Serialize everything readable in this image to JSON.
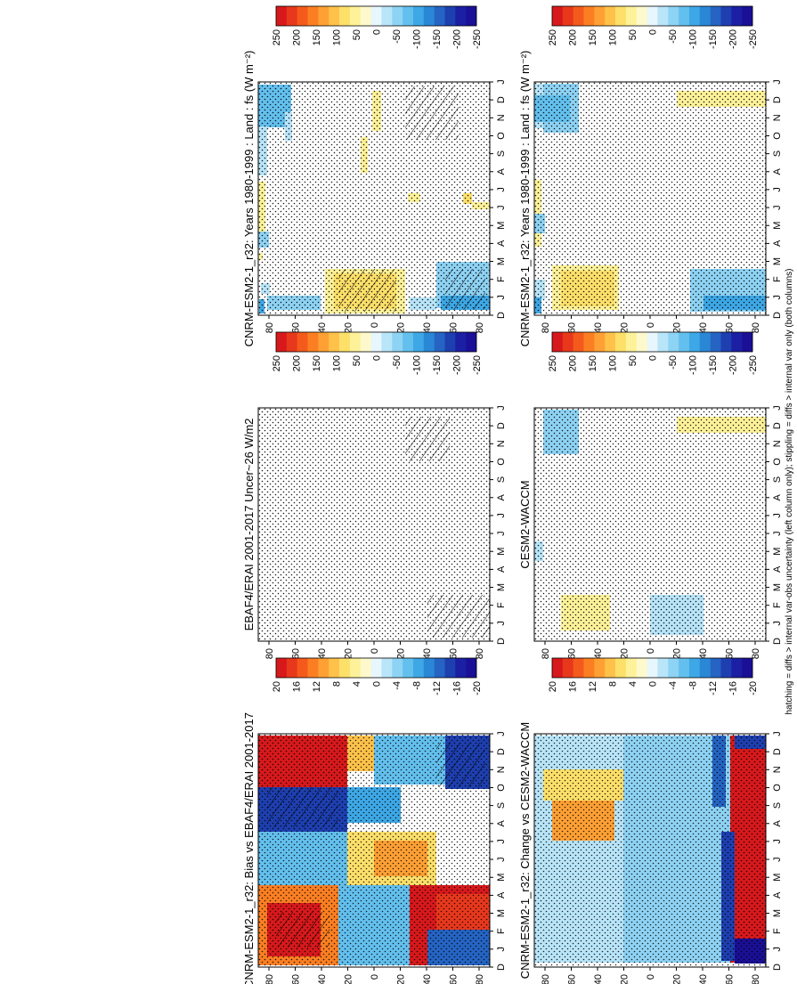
{
  "footnote": "hatching = diffs > internal var-obs uncertainty (left column only); stippling = diffs > internal var only (both columns)",
  "palette": {
    "warm": [
      "#d7191c",
      "#e8381c",
      "#f45a1c",
      "#fb7f22",
      "#fea034",
      "#fec24a",
      "#fde06a",
      "#fdf299",
      "#fef9cc"
    ],
    "cool": [
      "#e8f6fd",
      "#b9e5f9",
      "#8ed3f4",
      "#63c0ee",
      "#3ea8e6",
      "#2a87d6",
      "#2564c3",
      "#1e3fb0",
      "#1b1fa3",
      "#1a0f96"
    ]
  },
  "chart_data": [
    {
      "id": "panel-model-left",
      "type": "heatmap",
      "title": "CNRM-ESM2-1_r32: Years 1980-1999 : Land : fs (W m^-2)",
      "x_ticks": [
        "D",
        "J",
        "F",
        "M",
        "A",
        "M",
        "J",
        "J",
        "A",
        "S",
        "O",
        "N",
        "D",
        "J"
      ],
      "y_ticks": [
        "80",
        "60",
        "40",
        "20",
        "0",
        "20",
        "40",
        "60",
        "80"
      ],
      "colorbar_ticks": [
        "250",
        "200",
        "150",
        "100",
        "50",
        "0",
        "-50",
        "-100",
        "-150",
        "-200",
        "-250"
      ],
      "range": [
        -250,
        250
      ],
      "stippling": true,
      "hatching": true
    },
    {
      "id": "panel-model-right",
      "type": "heatmap",
      "title": "CNRM-ESM2-1_r32: Years 1980-1999 : Land : fs (W m^-2)",
      "x_ticks": [
        "D",
        "J",
        "F",
        "M",
        "A",
        "M",
        "J",
        "J",
        "A",
        "S",
        "O",
        "N",
        "D",
        "J"
      ],
      "y_ticks": [
        "80",
        "60",
        "40",
        "20",
        "0",
        "20",
        "40",
        "60",
        "80"
      ],
      "colorbar_ticks": [
        "250",
        "200",
        "150",
        "100",
        "50",
        "0",
        "-50",
        "-100",
        "-150",
        "-200",
        "-250"
      ],
      "range": [
        -250,
        250
      ],
      "stippling": true,
      "hatching": false
    },
    {
      "id": "panel-obs",
      "type": "heatmap",
      "title": "EBAF4/ERAI 2001-2017 Uncer~26 W/m2",
      "x_ticks": [
        "D",
        "J",
        "F",
        "M",
        "A",
        "M",
        "J",
        "J",
        "A",
        "S",
        "O",
        "N",
        "D",
        "J"
      ],
      "y_ticks": [
        "80",
        "60",
        "40",
        "20",
        "0",
        "20",
        "40",
        "60",
        "80"
      ],
      "colorbar_ticks": [
        "250",
        "200",
        "150",
        "100",
        "50",
        "0",
        "-50",
        "-100",
        "-150",
        "-200",
        "-250"
      ],
      "range": [
        -250,
        250
      ],
      "stippling": true,
      "hatching": true
    },
    {
      "id": "panel-cesm",
      "type": "heatmap",
      "title": "CESM2-WACCM",
      "x_ticks": [
        "D",
        "J",
        "F",
        "M",
        "A",
        "M",
        "J",
        "J",
        "A",
        "S",
        "O",
        "N",
        "D",
        "J"
      ],
      "y_ticks": [
        "80",
        "60",
        "40",
        "20",
        "0",
        "20",
        "40",
        "60",
        "80"
      ],
      "colorbar_ticks": [
        "250",
        "200",
        "150",
        "100",
        "50",
        "0",
        "-50",
        "-100",
        "-150",
        "-200",
        "-250"
      ],
      "range": [
        -250,
        250
      ],
      "stippling": true,
      "hatching": false
    },
    {
      "id": "panel-bias",
      "type": "heatmap",
      "title": "CNRM-ESM2-1_r32: Bias vs EBAF4/ERAI 2001-2017",
      "x_ticks": [
        "D",
        "J",
        "F",
        "M",
        "A",
        "M",
        "J",
        "J",
        "A",
        "S",
        "O",
        "N",
        "D",
        "J"
      ],
      "y_ticks": [
        "80",
        "60",
        "40",
        "20",
        "0",
        "20",
        "40",
        "60",
        "80"
      ],
      "colorbar_ticks": [
        "20",
        "16",
        "12",
        "8",
        "4",
        "0",
        "-4",
        "-8",
        "-12",
        "-16",
        "-20"
      ],
      "range": [
        -20,
        20
      ],
      "stippling": true,
      "hatching": true
    },
    {
      "id": "panel-change",
      "type": "heatmap",
      "title": "CNRM-ESM2-1_r32: Change vs CESM2-WACCM",
      "x_ticks": [
        "D",
        "J",
        "F",
        "M",
        "A",
        "M",
        "J",
        "J",
        "A",
        "S",
        "O",
        "N",
        "D",
        "J"
      ],
      "y_ticks": [
        "80",
        "60",
        "40",
        "20",
        "0",
        "20",
        "40",
        "60",
        "80"
      ],
      "colorbar_ticks": [
        "20",
        "16",
        "12",
        "8",
        "4",
        "0",
        "-4",
        "-8",
        "-12",
        "-16",
        "-20"
      ],
      "range": [
        -20,
        20
      ],
      "stippling": true,
      "hatching": false
    }
  ]
}
